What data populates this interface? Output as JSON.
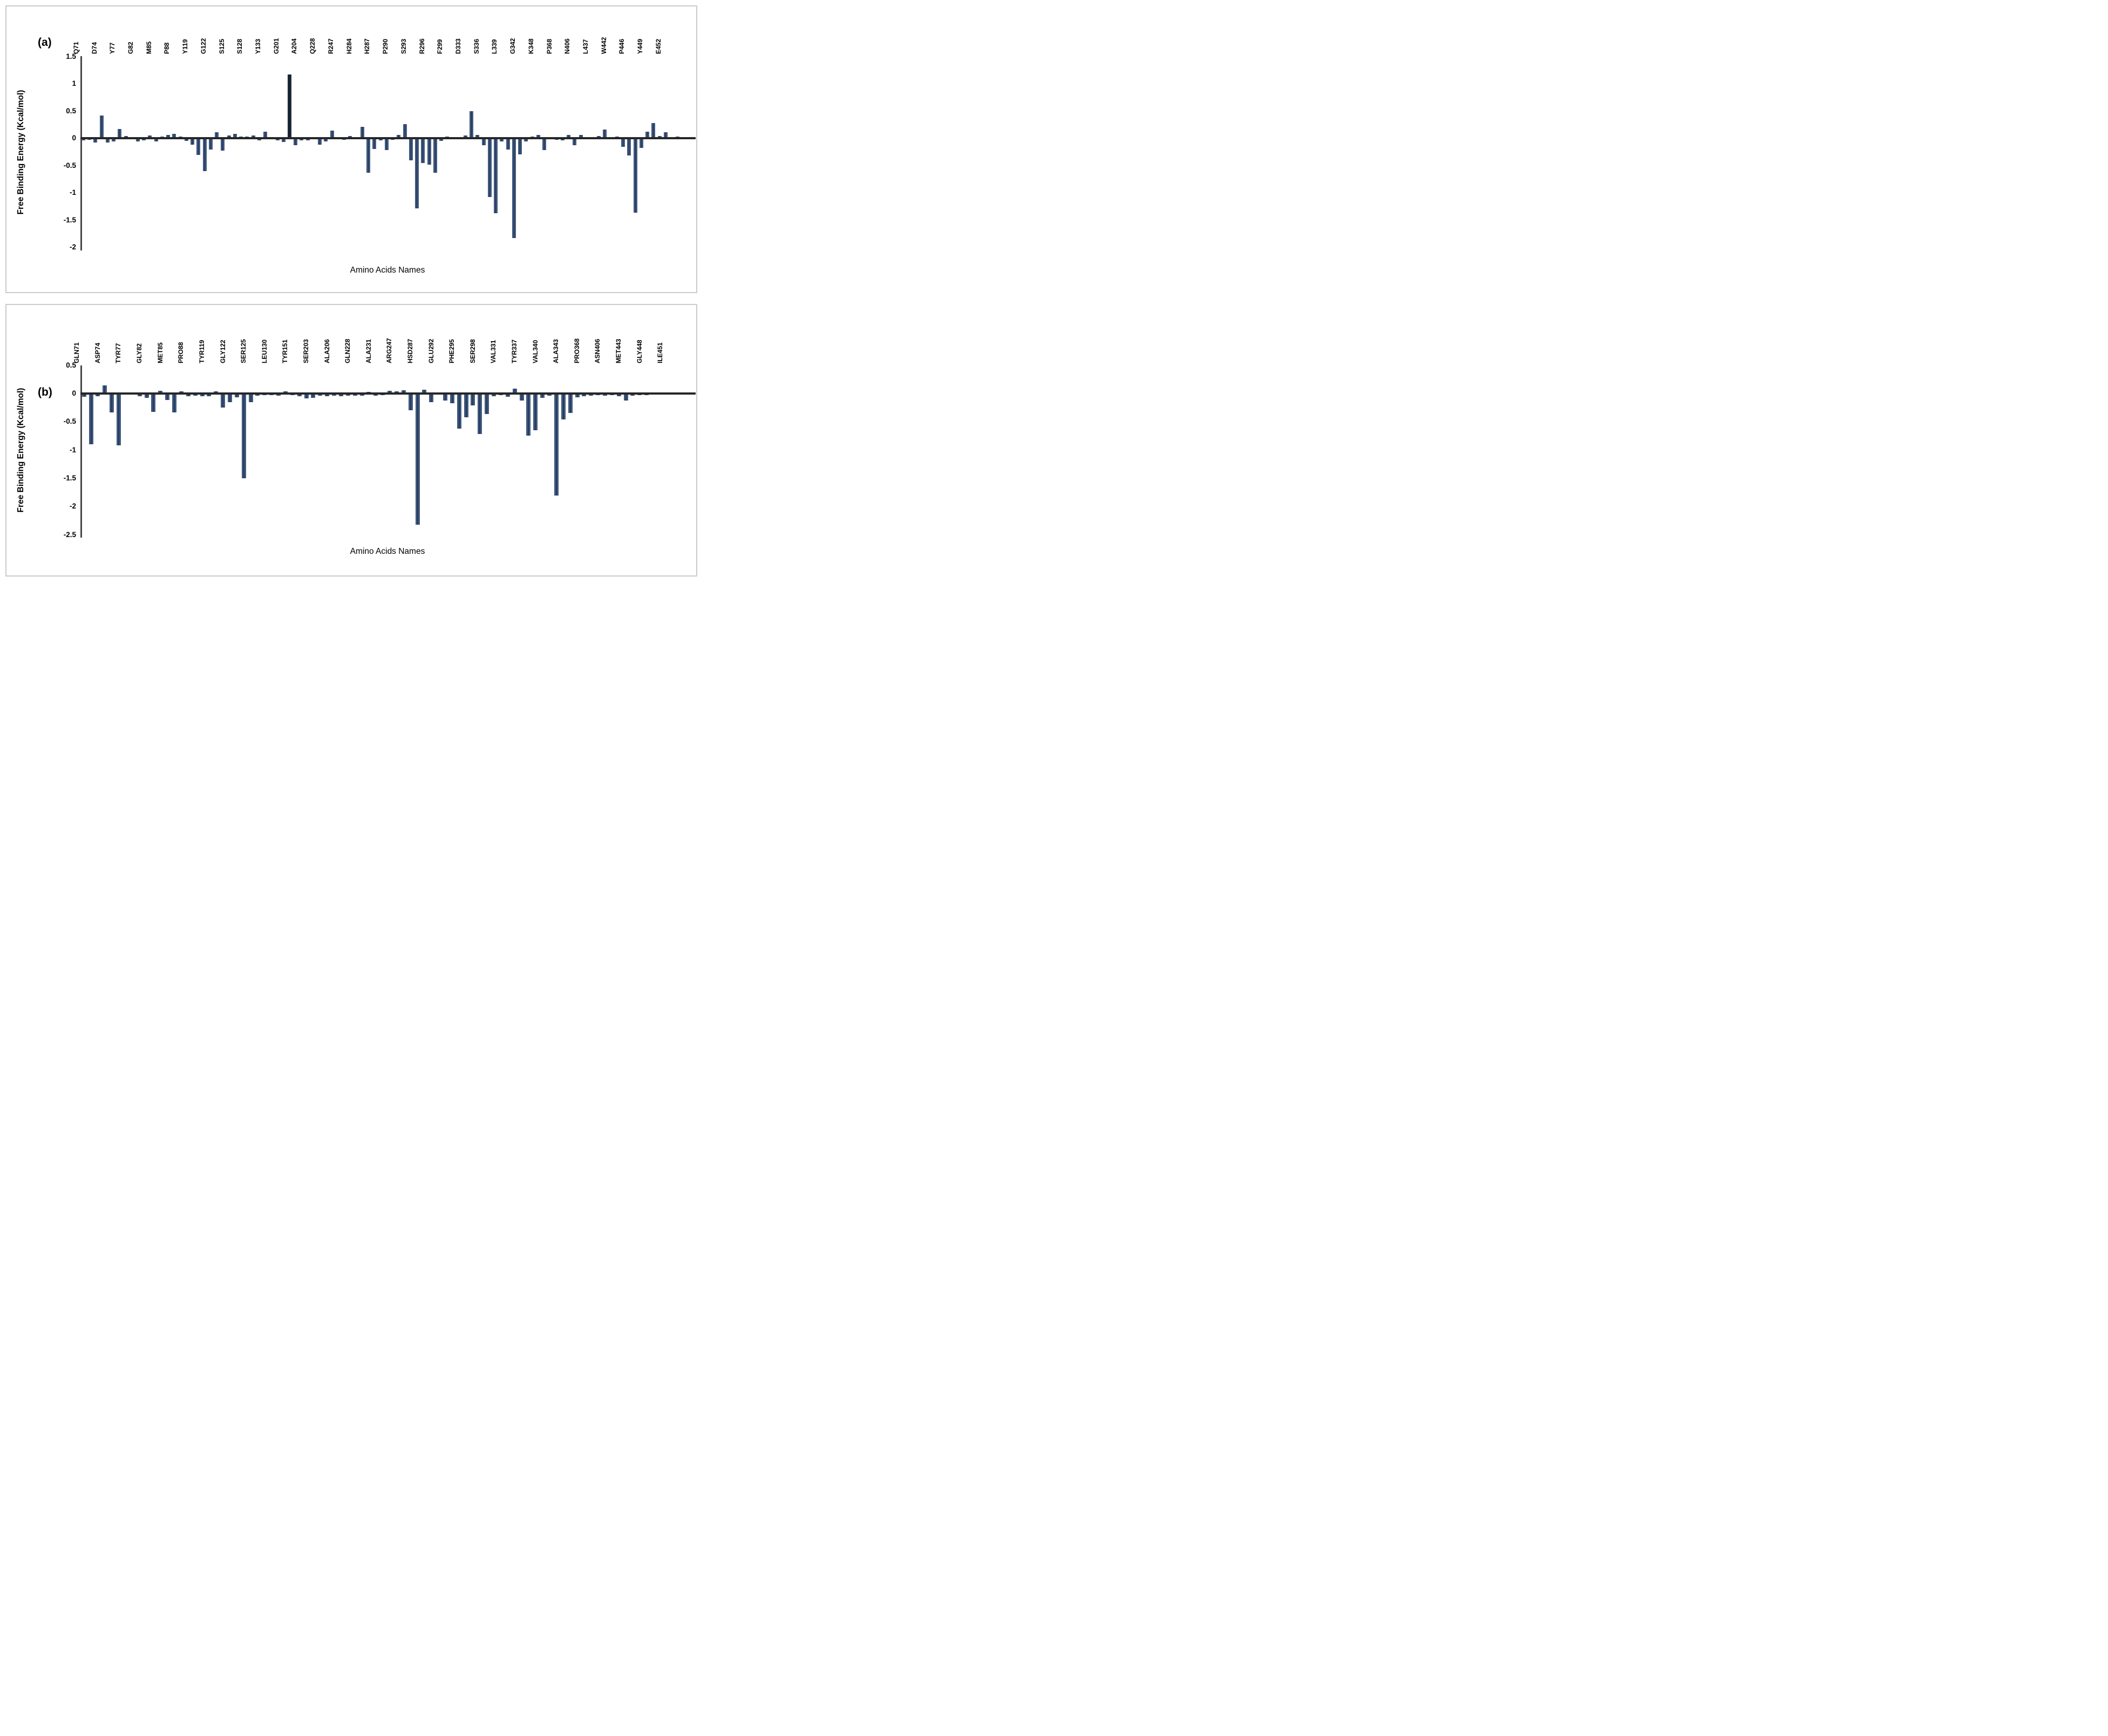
{
  "figure_caption_labels": {
    "panel_a": "(a)",
    "panel_b": "(b)"
  },
  "styles": {
    "bar_fill": "#41597a",
    "bar_center_stripe": "#10235a",
    "highlight_bar_fill": "#1d2937",
    "zero_line_color": "#262626",
    "axis_line_color": "#474747",
    "frame_color": "#cbcbcb",
    "text_color": "#000000",
    "background": "#ffffff"
  },
  "chart_data": [
    {
      "id": "a",
      "type": "bar",
      "panel_label": "(a)",
      "title": "",
      "xlabel": "Amino Acids Names",
      "ylabel": "Free Binding Energy (Kcal/mol)",
      "ylim": [
        -2,
        1.5
      ],
      "yticks": [
        1.5,
        1,
        0.5,
        0,
        -0.5,
        -1,
        -1.5,
        -2
      ],
      "ytick_labels": [
        "1.5",
        "1",
        "0.5",
        "0",
        "-0.5",
        "-1",
        "-1.5",
        "-2"
      ],
      "grid": false,
      "legend": "none",
      "bars_per_label": 3,
      "categories": [
        "Q71",
        "D74",
        "Y77",
        "G82",
        "M85",
        "P88",
        "Y119",
        "G122",
        "S125",
        "S128",
        "Y133",
        "G201",
        "A204",
        "Q228",
        "R247",
        "H284",
        "H287",
        "P290",
        "S293",
        "R296",
        "F299",
        "D333",
        "S336",
        "L339",
        "G342",
        "K348",
        "P368",
        "N406",
        "L437",
        "W442",
        "P446",
        "Y449",
        "E452"
      ],
      "values": [
        -0.04,
        -0.03,
        -0.08,
        0.42,
        -0.08,
        -0.06,
        0.17,
        0.04,
        -0.02,
        -0.06,
        -0.04,
        0.05,
        -0.06,
        0.03,
        0.06,
        0.08,
        0.03,
        -0.05,
        -0.12,
        -0.31,
        -0.6,
        -0.21,
        0.11,
        -0.23,
        0.05,
        0.08,
        0.03,
        0.03,
        0.05,
        -0.04,
        0.12,
        -0.02,
        -0.04,
        -0.07,
        1.17,
        -0.13,
        -0.04,
        -0.04,
        -0.02,
        -0.12,
        -0.06,
        0.14,
        0.02,
        -0.03,
        0.04,
        0.02,
        0.21,
        -0.63,
        -0.2,
        -0.04,
        -0.22,
        -0.03,
        0.06,
        0.26,
        -0.41,
        -1.29,
        -0.45,
        -0.48,
        -0.63,
        -0.05,
        0.03,
        0.02,
        -0.01,
        0.05,
        0.5,
        0.06,
        -0.13,
        -1.08,
        -1.38,
        -0.06,
        -0.21,
        -1.83,
        -0.3,
        -0.06,
        0.03,
        0.06,
        -0.22,
        -0.01,
        -0.03,
        -0.04,
        0.06,
        -0.13,
        0.06,
        0.02,
        0.02,
        0.04,
        0.16,
        0.02,
        0.03,
        -0.16,
        -0.32,
        -1.37,
        -0.18,
        0.12,
        0.28,
        0.04,
        0.11,
        0.02,
        0.03
      ],
      "highlight_value_index": 34
    },
    {
      "id": "b",
      "type": "bar",
      "panel_label": "(b)",
      "title": "",
      "xlabel": "Amino Acids Names",
      "ylabel": "Free Binding Energy (Kcal/mol)",
      "ylim": [
        -2.5,
        0.5
      ],
      "yticks": [
        0.5,
        0,
        -0.5,
        -1,
        -1.5,
        -2,
        -2.5
      ],
      "ytick_labels": [
        "0.5",
        "0",
        "-0.5",
        "-1",
        "-1.5",
        "-2",
        "-2.5"
      ],
      "grid": false,
      "legend": "none",
      "bars_per_label": 3,
      "categories": [
        "GLN71",
        "ASP74",
        "TYR77",
        "GLY82",
        "MET85",
        "PRO88",
        "TYR119",
        "GLY122",
        "SER125",
        "LEU130",
        "TYR151",
        "SER203",
        "ALA206",
        "GLN228",
        "ALA231",
        "ARG247",
        "HSD287",
        "GLU292",
        "PHE295",
        "SER298",
        "VAL331",
        "TYR337",
        "VAL340",
        "ALA343",
        "PRO368",
        "ASN406",
        "MET443",
        "GLY448",
        "ILE451"
      ],
      "values": [
        -0.06,
        -0.9,
        -0.05,
        0.14,
        -0.33,
        -0.92,
        -0.02,
        -0.02,
        -0.05,
        -0.08,
        -0.32,
        0.05,
        -0.11,
        -0.33,
        0.04,
        -0.05,
        -0.04,
        -0.05,
        -0.05,
        0.04,
        -0.25,
        -0.15,
        -0.07,
        -1.5,
        -0.15,
        -0.04,
        -0.03,
        -0.03,
        -0.04,
        0.04,
        -0.03,
        -0.05,
        -0.09,
        -0.08,
        -0.04,
        -0.05,
        -0.04,
        -0.05,
        -0.04,
        -0.04,
        -0.04,
        0.03,
        -0.04,
        -0.03,
        0.05,
        0.04,
        0.06,
        -0.3,
        -2.32,
        0.07,
        -0.15,
        0.02,
        -0.12,
        -0.17,
        -0.62,
        -0.42,
        -0.21,
        -0.72,
        -0.36,
        -0.05,
        -0.03,
        -0.06,
        0.09,
        -0.12,
        -0.74,
        -0.65,
        -0.08,
        -0.04,
        -1.8,
        -0.46,
        -0.34,
        -0.07,
        -0.05,
        -0.04,
        -0.03,
        -0.04,
        -0.03,
        -0.05,
        -0.12,
        -0.04,
        -0.03,
        -0.03,
        0.02,
        0.02,
        -0.02,
        0.02,
        0.02
      ],
      "highlight_value_index": -1
    }
  ]
}
